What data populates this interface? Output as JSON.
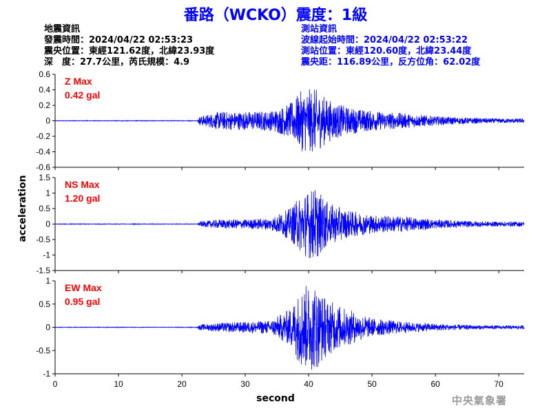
{
  "title": "番路（WCKO）震度：1級",
  "earthquake_info": {
    "heading": "地震資訊",
    "time": "發震時間：2024/04/22 02:53:23",
    "epicenter": "震央位置：東經121.62度，北緯23.93度",
    "depth_magnitude": "深　度：27.7公里，芮氏規模：4.9"
  },
  "station_info": {
    "heading": "測站資訊",
    "wave_start": "波線起始時間：2024/04/22 02:53:22",
    "station_location": "測站位置：東經120.60度，北緯23.44度",
    "distance_azimuth": "震央距：116.89公里，反方位角：62.02度"
  },
  "organization": "中央氣象署",
  "colors": {
    "trace": "#0000ff",
    "max_label": "#ff0000",
    "title": "#0000ff"
  },
  "chart_data": [
    {
      "type": "line",
      "channel": "Z",
      "max_label": "Z Max",
      "max_value": "0.42 gal",
      "ylim": [
        -0.6,
        0.6
      ],
      "yticks": [
        -0.6,
        -0.4,
        -0.2,
        0,
        0.2,
        0.4,
        0.6
      ],
      "ytick_labels": [
        "-0.6",
        "-0.4",
        "-0.2",
        "0",
        "0.2",
        "0.4",
        "0.6"
      ],
      "xlim": [
        0,
        74
      ],
      "onset": 22.5,
      "envelope": [
        [
          0,
          0.004
        ],
        [
          22.4,
          0.004
        ],
        [
          22.8,
          0.06
        ],
        [
          26,
          0.12
        ],
        [
          30,
          0.12
        ],
        [
          34,
          0.13
        ],
        [
          37,
          0.22
        ],
        [
          39,
          0.4
        ],
        [
          41,
          0.42
        ],
        [
          43,
          0.28
        ],
        [
          46,
          0.18
        ],
        [
          50,
          0.13
        ],
        [
          55,
          0.1
        ],
        [
          60,
          0.06
        ],
        [
          65,
          0.04
        ],
        [
          70,
          0.03
        ],
        [
          74,
          0.03
        ]
      ]
    },
    {
      "type": "line",
      "channel": "NS",
      "max_label": "NS Max",
      "max_value": "1.20 gal",
      "ylim": [
        -1.5,
        1.5
      ],
      "yticks": [
        -1.5,
        -1,
        -0.5,
        0,
        0.5,
        1,
        1.5
      ],
      "ytick_labels": [
        "-1.5",
        "-1",
        "-0.5",
        "0",
        "0.5",
        "1",
        "1.5"
      ],
      "xlim": [
        0,
        74
      ],
      "onset": 22.5,
      "envelope": [
        [
          0,
          0.01
        ],
        [
          22.4,
          0.01
        ],
        [
          22.8,
          0.08
        ],
        [
          26,
          0.15
        ],
        [
          30,
          0.15
        ],
        [
          34,
          0.2
        ],
        [
          37,
          0.5
        ],
        [
          39,
          1.0
        ],
        [
          41,
          1.2
        ],
        [
          43,
          0.7
        ],
        [
          46,
          0.45
        ],
        [
          50,
          0.3
        ],
        [
          55,
          0.25
        ],
        [
          60,
          0.15
        ],
        [
          65,
          0.1
        ],
        [
          70,
          0.08
        ],
        [
          74,
          0.08
        ]
      ]
    },
    {
      "type": "line",
      "channel": "EW",
      "max_label": "EW Max",
      "max_value": "0.95 gal",
      "ylim": [
        -1,
        1
      ],
      "yticks": [
        -1,
        -0.5,
        0,
        0.5,
        1
      ],
      "ytick_labels": [
        "-1",
        "-0.5",
        "0",
        "0.5",
        "1"
      ],
      "xlim": [
        0,
        74
      ],
      "onset": 22.5,
      "envelope": [
        [
          0,
          0.006
        ],
        [
          22.4,
          0.006
        ],
        [
          22.8,
          0.06
        ],
        [
          26,
          0.1
        ],
        [
          30,
          0.12
        ],
        [
          34,
          0.15
        ],
        [
          37,
          0.4
        ],
        [
          39,
          0.9
        ],
        [
          41,
          0.95
        ],
        [
          43,
          0.6
        ],
        [
          46,
          0.4
        ],
        [
          50,
          0.2
        ],
        [
          55,
          0.12
        ],
        [
          60,
          0.08
        ],
        [
          65,
          0.05
        ],
        [
          70,
          0.04
        ],
        [
          74,
          0.04
        ]
      ]
    }
  ],
  "axes": {
    "ylabel": "acceleration",
    "xlabel": "second",
    "xticks": [
      0,
      10,
      20,
      30,
      40,
      50,
      60,
      70
    ],
    "xtick_labels": [
      "0",
      "10",
      "20",
      "30",
      "40",
      "50",
      "60",
      "70"
    ]
  }
}
